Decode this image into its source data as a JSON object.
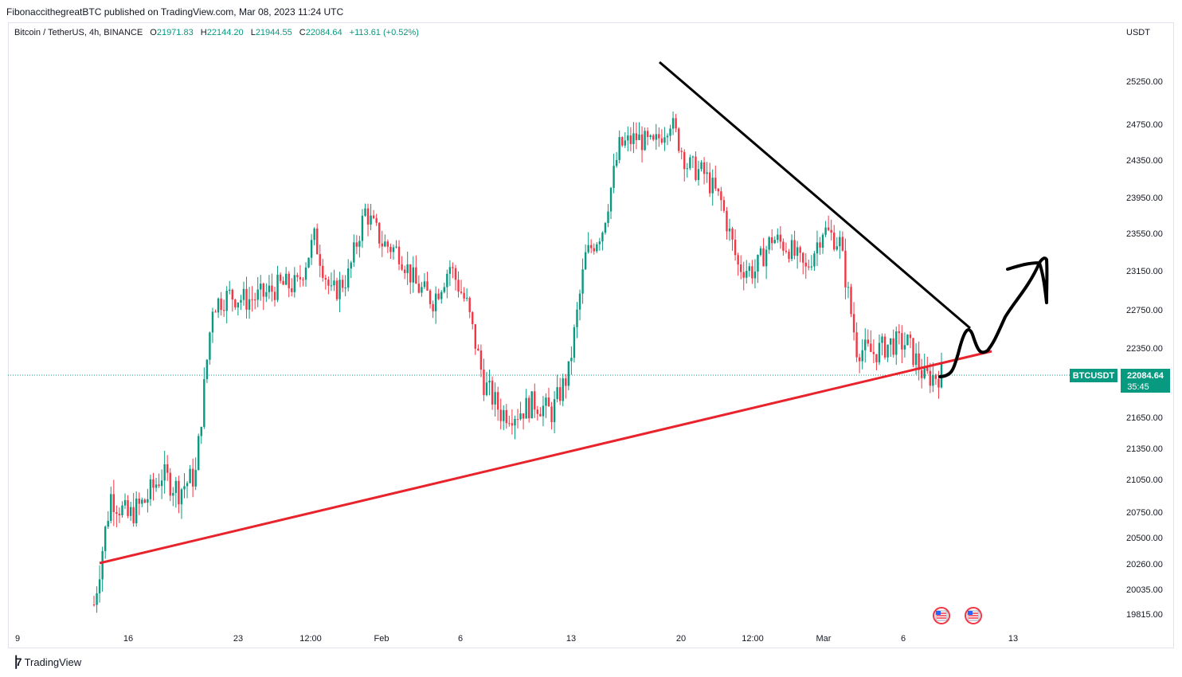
{
  "header": {
    "published_by": "FibonaccithegreatBTC published on TradingView.com, Mar 08, 2023 11:24 UTC"
  },
  "symbol_info": {
    "name": "Bitcoin / TetherUS, 4h, BINANCE",
    "open_label": "O",
    "open": "21971.83",
    "high_label": "H",
    "high": "22144.20",
    "low_label": "L",
    "low": "21944.55",
    "close_label": "C",
    "close": "22084.64",
    "change": "+113.61 (+0.52%)"
  },
  "footer": {
    "brand": "TradingView",
    "logo_icon": "tradingview-logo-icon"
  },
  "colors": {
    "up": "#089981",
    "down": "#f23645",
    "support_line": "#e8232b",
    "resistance_line": "#000000",
    "badge": "#089981"
  },
  "chart_data": {
    "type": "candlestick",
    "currency_label": "USDT",
    "y_axis_ticks": [
      "25250.00",
      "24750.00",
      "24350.00",
      "23950.00",
      "23550.00",
      "23150.00",
      "22750.00",
      "22350.00",
      "21650.00",
      "21350.00",
      "21050.00",
      "20750.00",
      "20500.00",
      "20260.00",
      "20035.00",
      "19815.00"
    ],
    "x_axis_ticks": [
      "9",
      "16",
      "23",
      "12:00",
      "Feb",
      "6",
      "13",
      "20",
      "12:00",
      "Mar",
      "6",
      "13"
    ],
    "last_price": {
      "symbol": "BTCUSDT",
      "price": "22084.64",
      "countdown": "35:45"
    },
    "close_series_approx": [
      {
        "date": "Jan 12",
        "close": 19900
      },
      {
        "date": "Jan 13",
        "close": 20900
      },
      {
        "date": "Jan 14",
        "close": 20700
      },
      {
        "date": "Jan 16",
        "close": 20850
      },
      {
        "date": "Jan 18",
        "close": 21100
      },
      {
        "date": "Jan 19",
        "close": 20950
      },
      {
        "date": "Jan 20",
        "close": 21100
      },
      {
        "date": "Jan 21",
        "close": 22800
      },
      {
        "date": "Jan 22",
        "close": 22900
      },
      {
        "date": "Jan 23",
        "close": 22850
      },
      {
        "date": "Jan 25",
        "close": 22900
      },
      {
        "date": "Jan 26",
        "close": 23000
      },
      {
        "date": "Jan 28",
        "close": 23000
      },
      {
        "date": "Jan 29",
        "close": 23500
      },
      {
        "date": "Jan 30",
        "close": 22900
      },
      {
        "date": "Feb 1",
        "close": 23100
      },
      {
        "date": "Feb 2",
        "close": 23800
      },
      {
        "date": "Feb 3",
        "close": 23450
      },
      {
        "date": "Feb 4",
        "close": 23350
      },
      {
        "date": "Feb 5",
        "close": 23000
      },
      {
        "date": "Feb 6",
        "close": 22850
      },
      {
        "date": "Feb 7",
        "close": 23200
      },
      {
        "date": "Feb 8",
        "close": 22800
      },
      {
        "date": "Feb 9",
        "close": 22000
      },
      {
        "date": "Feb 10",
        "close": 21700
      },
      {
        "date": "Feb 11",
        "close": 21700
      },
      {
        "date": "Feb 12",
        "close": 21800
      },
      {
        "date": "Feb 13",
        "close": 21700
      },
      {
        "date": "Feb 14",
        "close": 22100
      },
      {
        "date": "Feb 15",
        "close": 23300
      },
      {
        "date": "Feb 16",
        "close": 23600
      },
      {
        "date": "Feb 17",
        "close": 24500
      },
      {
        "date": "Feb 18",
        "close": 24600
      },
      {
        "date": "Feb 19",
        "close": 24500
      },
      {
        "date": "Feb 20",
        "close": 24800
      },
      {
        "date": "Feb 21",
        "close": 24300
      },
      {
        "date": "Feb 22",
        "close": 24200
      },
      {
        "date": "Feb 23",
        "close": 23900
      },
      {
        "date": "Feb 24",
        "close": 23200
      },
      {
        "date": "Feb 25",
        "close": 23150
      },
      {
        "date": "Feb 26",
        "close": 23500
      },
      {
        "date": "Feb 27",
        "close": 23400
      },
      {
        "date": "Feb 28",
        "close": 23150
      },
      {
        "date": "Mar 1",
        "close": 23600
      },
      {
        "date": "Mar 2",
        "close": 23450
      },
      {
        "date": "Mar 3",
        "close": 22350
      },
      {
        "date": "Mar 4",
        "close": 22300
      },
      {
        "date": "Mar 5",
        "close": 22400
      },
      {
        "date": "Mar 6",
        "close": 22400
      },
      {
        "date": "Mar 7",
        "close": 22050
      },
      {
        "date": "Mar 8",
        "close": 22084.64
      }
    ]
  }
}
